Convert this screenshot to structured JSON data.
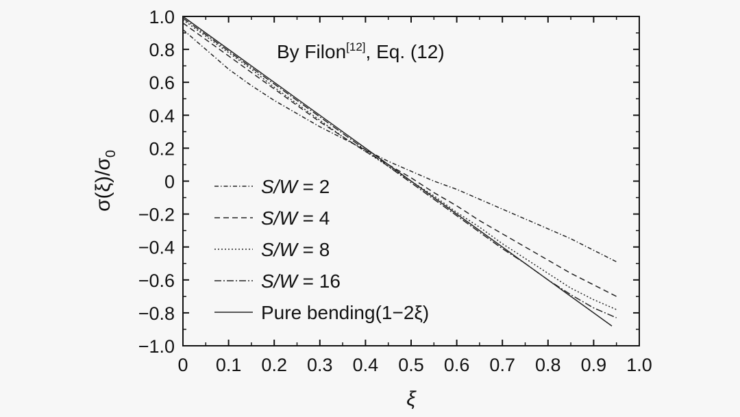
{
  "chart_data": {
    "type": "line",
    "annotation": {
      "prefix": "By Filon",
      "superscript": "[12]",
      "suffix": ", Eq. (12)"
    },
    "xlabel": "ξ",
    "ylabel": {
      "main": "σ(ξ)/σ",
      "sub": "0"
    },
    "xlim": [
      0,
      1.0
    ],
    "ylim": [
      -1.0,
      1.0
    ],
    "x_ticks": [
      "0",
      "0.1",
      "0.2",
      "0.3",
      "0.4",
      "0.5",
      "0.6",
      "0.7",
      "0.8",
      "0.9",
      "1.0"
    ],
    "y_ticks": [
      "1.0",
      "0.8",
      "0.6",
      "0.4",
      "0.2",
      "0",
      "−0.2",
      "−0.4",
      "−0.6",
      "−0.8",
      "−1.0"
    ],
    "grid": false,
    "legend_position": "left",
    "series": [
      {
        "name": "S/W = 2",
        "legend": {
          "italic": "S/W",
          "rest": " = 2"
        },
        "dash": "dashdot",
        "x": [
          0,
          0.05,
          0.1,
          0.15,
          0.2,
          0.25,
          0.3,
          0.35,
          0.4,
          0.45,
          0.5,
          0.55,
          0.6,
          0.65,
          0.7,
          0.75,
          0.8,
          0.85,
          0.9,
          0.95
        ],
        "y": [
          0.92,
          0.8,
          0.68,
          0.58,
          0.49,
          0.41,
          0.33,
          0.26,
          0.19,
          0.12,
          0.06,
          0.0,
          -0.05,
          -0.11,
          -0.17,
          -0.23,
          -0.29,
          -0.35,
          -0.42,
          -0.49
        ]
      },
      {
        "name": "S/W = 4",
        "legend": {
          "italic": "S/W",
          "rest": " = 4"
        },
        "dash": "dashed",
        "x": [
          0,
          0.05,
          0.1,
          0.15,
          0.2,
          0.25,
          0.3,
          0.35,
          0.4,
          0.45,
          0.5,
          0.55,
          0.6,
          0.65,
          0.7,
          0.75,
          0.8,
          0.85,
          0.9,
          0.95
        ],
        "y": [
          0.96,
          0.86,
          0.76,
          0.66,
          0.56,
          0.46,
          0.36,
          0.27,
          0.18,
          0.1,
          0.02,
          -0.07,
          -0.15,
          -0.24,
          -0.32,
          -0.4,
          -0.48,
          -0.56,
          -0.63,
          -0.7
        ]
      },
      {
        "name": "S/W = 8",
        "legend": {
          "italic": "S/W",
          "rest": " = 8"
        },
        "dash": "dotted",
        "x": [
          0,
          0.05,
          0.1,
          0.15,
          0.2,
          0.25,
          0.3,
          0.35,
          0.4,
          0.45,
          0.5,
          0.55,
          0.6,
          0.65,
          0.7,
          0.75,
          0.8,
          0.85,
          0.9,
          0.95
        ],
        "y": [
          0.98,
          0.88,
          0.78,
          0.68,
          0.57,
          0.47,
          0.37,
          0.27,
          0.18,
          0.09,
          0.0,
          -0.09,
          -0.19,
          -0.28,
          -0.38,
          -0.47,
          -0.56,
          -0.65,
          -0.72,
          -0.78
        ]
      },
      {
        "name": "S/W = 16",
        "legend": {
          "italic": "S/W",
          "rest": " = 16"
        },
        "dash": "dashdot-long",
        "x": [
          0,
          0.05,
          0.1,
          0.15,
          0.2,
          0.25,
          0.3,
          0.35,
          0.4,
          0.45,
          0.5,
          0.55,
          0.6,
          0.65,
          0.7,
          0.75,
          0.8,
          0.85,
          0.9,
          0.95
        ],
        "y": [
          0.99,
          0.89,
          0.79,
          0.69,
          0.59,
          0.49,
          0.39,
          0.29,
          0.19,
          0.09,
          -0.01,
          -0.11,
          -0.21,
          -0.31,
          -0.41,
          -0.5,
          -0.6,
          -0.69,
          -0.77,
          -0.83
        ]
      },
      {
        "name": "Pure bending(1−2ξ)",
        "legend": {
          "italic": "",
          "rest": "Pure bending(1−2ξ)"
        },
        "dash": "solid",
        "x": [
          0,
          0.05,
          0.1,
          0.15,
          0.2,
          0.25,
          0.3,
          0.35,
          0.4,
          0.45,
          0.5,
          0.55,
          0.6,
          0.65,
          0.7,
          0.75,
          0.8,
          0.85,
          0.9,
          0.94
        ],
        "y": [
          1.0,
          0.9,
          0.8,
          0.7,
          0.6,
          0.5,
          0.4,
          0.3,
          0.2,
          0.1,
          0.0,
          -0.1,
          -0.2,
          -0.3,
          -0.4,
          -0.5,
          -0.6,
          -0.7,
          -0.8,
          -0.88
        ]
      }
    ]
  }
}
